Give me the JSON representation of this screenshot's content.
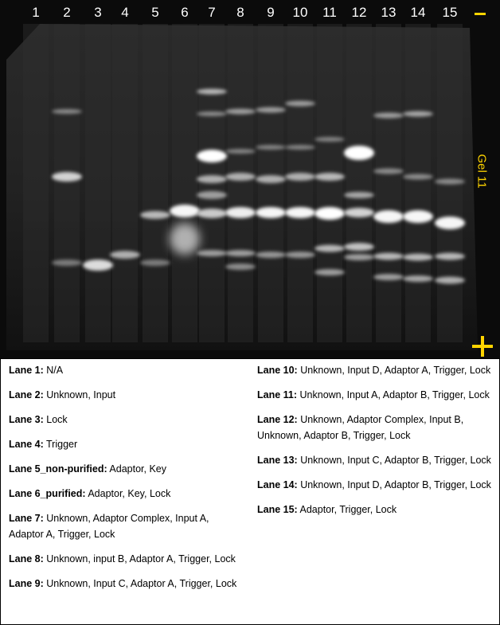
{
  "gel": {
    "lane_numbers": [
      "1",
      "2",
      "3",
      "4",
      "5",
      "6",
      "7",
      "8",
      "9",
      "10",
      "11",
      "12",
      "13",
      "14",
      "15"
    ],
    "minus_sign": "-",
    "plus_sign": "+",
    "label": "Gel 11",
    "label_color": "#ffd400"
  },
  "legend": {
    "left": [
      {
        "label": "Lane 1:",
        "text": "N/A"
      },
      {
        "label": "Lane 2:",
        "text": "Unknown, Input"
      },
      {
        "label": "Lane 3:",
        "text": "Lock"
      },
      {
        "label": "Lane 4:",
        "text": "Trigger"
      },
      {
        "label": "Lane 5_non-purified:",
        "text": "Adaptor, Key"
      },
      {
        "label": "Lane 6_purified:",
        "text": "Adaptor, Key, Lock"
      },
      {
        "label": "Lane 7:",
        "text": "Unknown, Adaptor Complex, Input A, Adaptor A, Trigger, Lock"
      },
      {
        "label": "Lane 8:",
        "text": "Unknown, input B, Adaptor A, Trigger, Lock"
      },
      {
        "label": "Lane 9:",
        "text": "Unknown, Input C, Adaptor A, Trigger, Lock"
      }
    ],
    "right": [
      {
        "label": "Lane 10:",
        "text": "Unknown, Input D, Adaptor A, Trigger, Lock"
      },
      {
        "label": "Lane 11:",
        "text": "Unknown, Input A, Adaptor B, Trigger, Lock"
      },
      {
        "label": "Lane 12:",
        "text": "Unknown, Adaptor Complex, Input B, Unknown, Adaptor B, Trigger, Lock"
      },
      {
        "label": "Lane 13:",
        "text": "Unknown, Input C, Adaptor B, Trigger, Lock"
      },
      {
        "label": "Lane 14:",
        "text": "Unknown, Input D, Adaptor B, Trigger, Lock"
      },
      {
        "label": "Lane 15:",
        "text": "Adaptor, Trigger, Lock"
      }
    ]
  }
}
